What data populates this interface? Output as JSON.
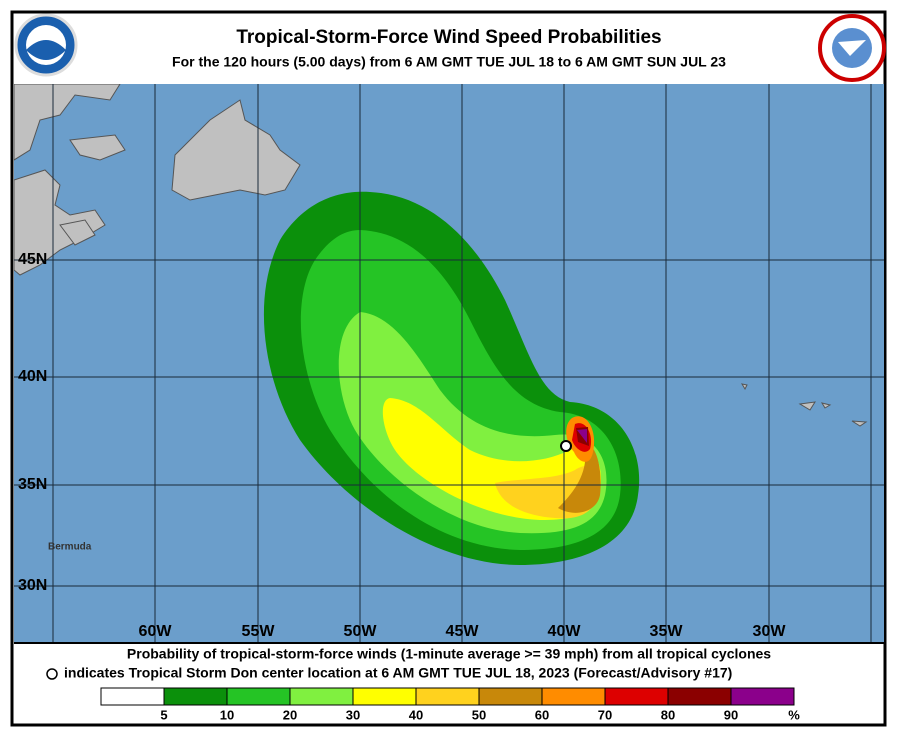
{
  "header": {
    "title": "Tropical-Storm-Force Wind Speed Probabilities",
    "subtitle": "For the 120 hours (5.00 days) from 6 AM GMT TUE JUL 18 to 6 AM GMT SUN JUL 23"
  },
  "map": {
    "lat_labels": [
      "45N",
      "40N",
      "35N",
      "30N"
    ],
    "lon_labels": [
      "60W",
      "55W",
      "50W",
      "45W",
      "40W",
      "35W",
      "30W"
    ],
    "places": [
      "Bermuda"
    ]
  },
  "footer": {
    "line1": "Probability of tropical-storm-force winds (1-minute average >= 39 mph) from all tropical cyclones",
    "line2": "indicates Tropical Storm Don center location at 6 AM GMT TUE JUL 18, 2023 (Forecast/Advisory #17)"
  },
  "legend": {
    "ticks": [
      5,
      10,
      20,
      30,
      40,
      50,
      60,
      70,
      80,
      90
    ],
    "unit": "%",
    "colors": [
      "#ffffff",
      "#0b900b",
      "#25c425",
      "#80f040",
      "#ffff00",
      "#ffd21e",
      "#c8880a",
      "#ff8c00",
      "#dd0000",
      "#8b0000",
      "#8b008b"
    ]
  }
}
